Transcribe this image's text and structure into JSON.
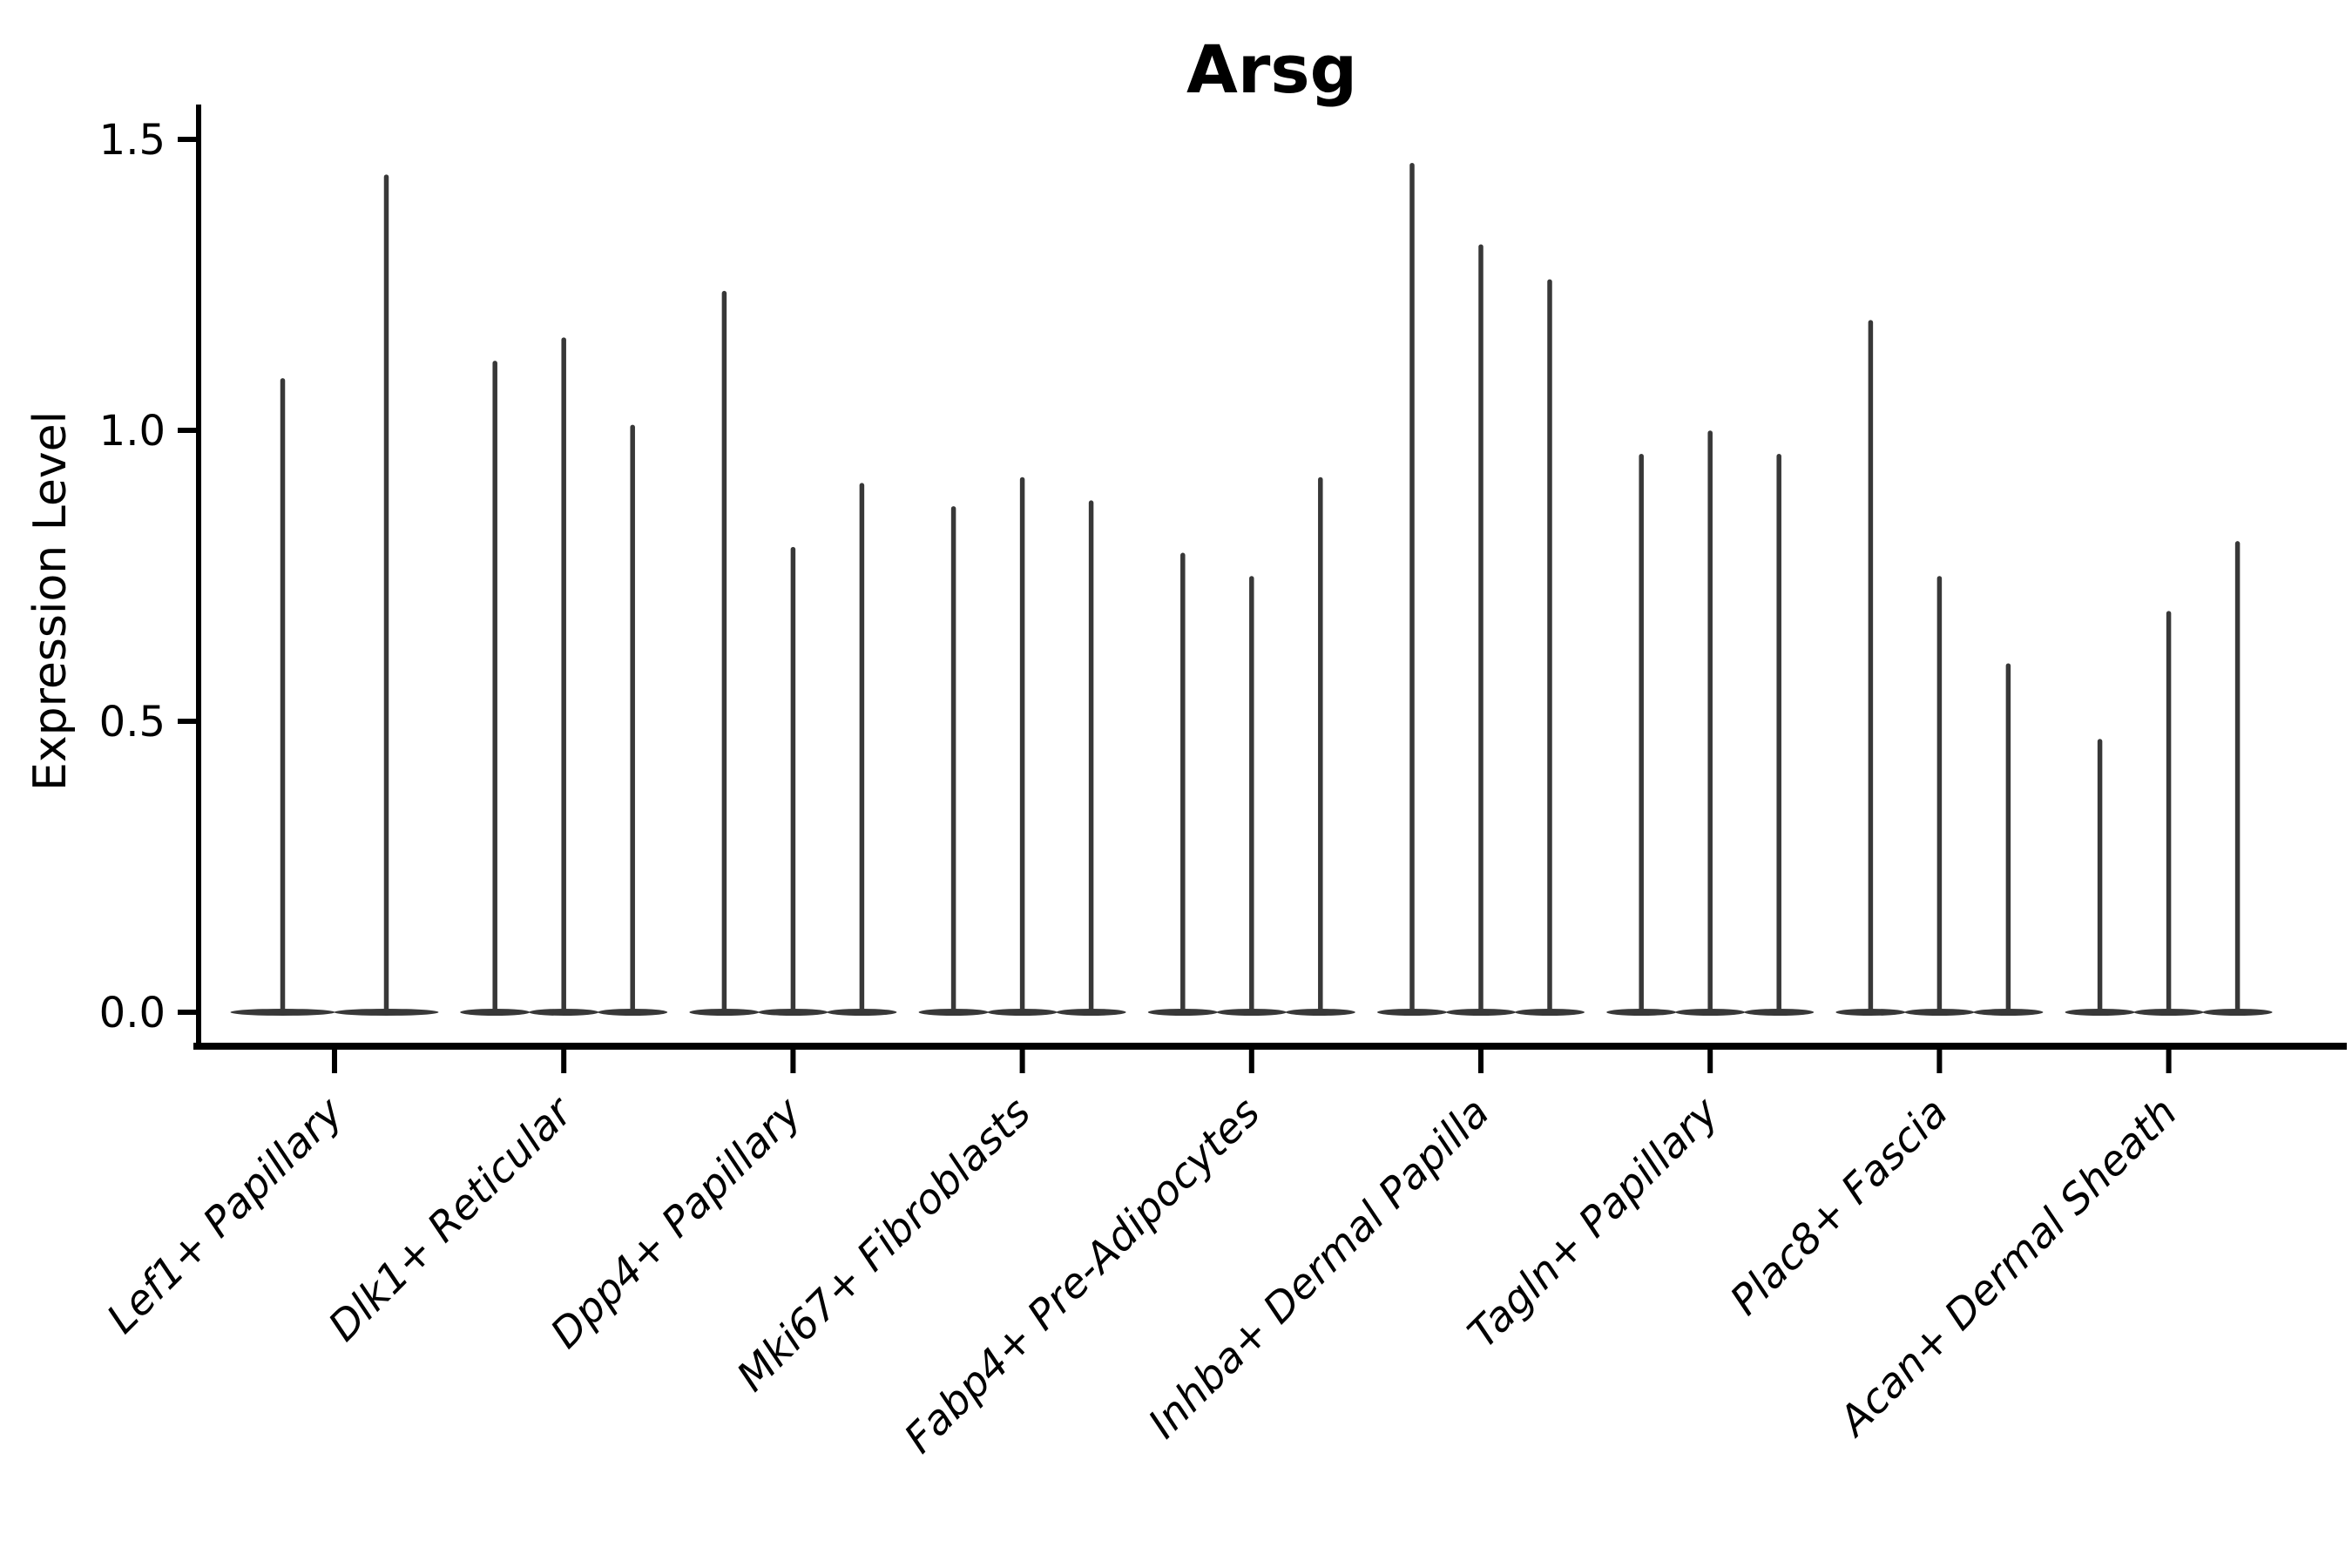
{
  "chart_data": {
    "type": "violin",
    "title": "Arsg",
    "xlabel": "",
    "ylabel": "Expression Level",
    "ytick_labels": [
      "0.0",
      "0.5",
      "1.0",
      "1.5"
    ],
    "ytick_values": [
      0.0,
      0.5,
      1.0,
      1.5
    ],
    "ylim": [
      -0.06,
      1.56
    ],
    "grid": false,
    "legend": "none",
    "xtick_rotation_degrees": 45,
    "xtick_style": "italic",
    "violin_shape_note": "each violin is a point-mass at 0 (wide flat base on the zero line) with a thin vertical spike rising to its maximum expression value",
    "categories": [
      "Lef1+ Papillary",
      "Dlk1+ Reticular",
      "Dpp4+ Papillary",
      "Mki67+ Fibroblasts",
      "Fabp4+ Pre-Adipocytes",
      "Inhba+ Dermal Papilla",
      "Tagln+ Papillary",
      "Plac8+ Fascia",
      "Acan+ Dermal Sheath"
    ],
    "groups": [
      {
        "category": "Lef1+ Papillary",
        "violin_max_values": [
          1.09,
          1.44
        ]
      },
      {
        "category": "Dlk1+ Reticular",
        "violin_max_values": [
          1.12,
          1.16,
          1.01
        ]
      },
      {
        "category": "Dpp4+ Papillary",
        "violin_max_values": [
          1.24,
          0.8,
          0.91
        ]
      },
      {
        "category": "Mki67+ Fibroblasts",
        "violin_max_values": [
          0.87,
          0.92,
          0.88
        ]
      },
      {
        "category": "Fabp4+ Pre-Adipocytes",
        "violin_max_values": [
          0.79,
          0.75,
          0.92
        ]
      },
      {
        "category": "Inhba+ Dermal Papilla",
        "violin_max_values": [
          1.46,
          1.32,
          1.26
        ]
      },
      {
        "category": "Tagln+ Papillary",
        "violin_max_values": [
          0.96,
          1.0,
          0.96
        ]
      },
      {
        "category": "Plac8+ Fascia",
        "violin_max_values": [
          1.19,
          0.75,
          0.6
        ]
      },
      {
        "category": "Acan+ Dermal Sheath",
        "violin_max_values": [
          0.47,
          0.69,
          0.81
        ]
      }
    ],
    "colors": {
      "violin": "#383838",
      "axis": "#000000",
      "text": "#000000",
      "background": "#ffffff"
    }
  }
}
